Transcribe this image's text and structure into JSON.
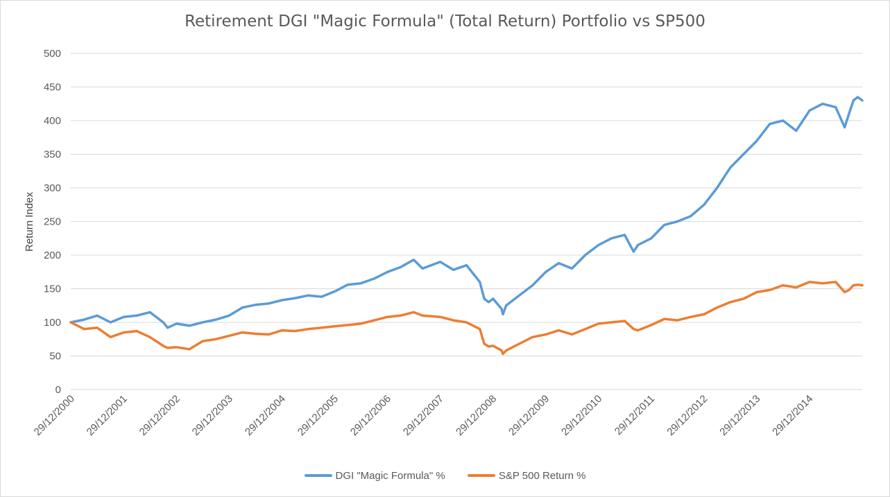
{
  "chart_data": {
    "type": "line",
    "title": "Retirement DGI \"Magic Formula\" (Total Return) Portfolio vs SP500",
    "xlabel": "",
    "ylabel": "Return Index",
    "ylim": [
      0,
      500
    ],
    "yticks": [
      0,
      50,
      100,
      150,
      200,
      250,
      300,
      350,
      400,
      450,
      500
    ],
    "xlim": [
      "29/12/2000",
      "31/12/2015"
    ],
    "xticks": [
      "29/12/2000",
      "29/12/2001",
      "29/12/2002",
      "29/12/2003",
      "29/12/2004",
      "29/12/2005",
      "29/12/2006",
      "29/12/2007",
      "29/12/2008",
      "29/12/2009",
      "29/12/2010",
      "29/12/2011",
      "29/12/2012",
      "29/12/2013",
      "29/12/2014"
    ],
    "grid": "horizontal",
    "legend_position": "bottom",
    "series": [
      {
        "name": "DGI \"Magic Formula\" %",
        "color": "#5b9bd5",
        "x": [
          "29/12/2000",
          "31/03/2001",
          "30/06/2001",
          "30/09/2001",
          "31/12/2001",
          "31/03/2002",
          "30/06/2002",
          "30/09/2002",
          "31/10/2002",
          "31/12/2002",
          "31/03/2003",
          "30/06/2003",
          "30/09/2003",
          "31/12/2003",
          "31/03/2004",
          "30/06/2004",
          "30/09/2004",
          "31/12/2004",
          "31/03/2005",
          "30/06/2005",
          "30/09/2005",
          "31/12/2005",
          "31/03/2006",
          "30/06/2006",
          "30/09/2006",
          "31/12/2006",
          "31/03/2007",
          "30/06/2007",
          "31/08/2007",
          "31/12/2007",
          "31/03/2008",
          "30/06/2008",
          "30/09/2008",
          "31/10/2008",
          "30/11/2008",
          "31/12/2008",
          "28/02/2009",
          "09/03/2009",
          "31/03/2009",
          "30/06/2009",
          "30/09/2009",
          "31/12/2009",
          "31/03/2010",
          "30/06/2010",
          "30/09/2010",
          "31/12/2010",
          "31/03/2011",
          "30/06/2011",
          "31/08/2011",
          "30/09/2011",
          "31/12/2011",
          "31/03/2012",
          "30/06/2012",
          "30/09/2012",
          "31/12/2012",
          "31/03/2013",
          "30/06/2013",
          "30/09/2013",
          "31/12/2013",
          "31/03/2014",
          "30/06/2014",
          "30/09/2014",
          "31/12/2014",
          "31/03/2015",
          "30/06/2015",
          "31/08/2015",
          "30/09/2015",
          "31/10/2015",
          "30/11/2015",
          "31/12/2015"
        ],
        "values": [
          100,
          104,
          110,
          100,
          108,
          110,
          115,
          100,
          92,
          98,
          95,
          100,
          104,
          110,
          122,
          126,
          128,
          133,
          136,
          140,
          138,
          146,
          156,
          158,
          165,
          175,
          182,
          193,
          180,
          190,
          178,
          185,
          160,
          135,
          130,
          135,
          120,
          112,
          125,
          140,
          155,
          175,
          188,
          180,
          200,
          215,
          225,
          230,
          205,
          215,
          225,
          245,
          250,
          258,
          275,
          300,
          330,
          350,
          370,
          395,
          400,
          385,
          415,
          425,
          420,
          390,
          410,
          430,
          435,
          430
        ]
      },
      {
        "name": "S&P 500 Return %",
        "color": "#ed7d31",
        "x": [
          "29/12/2000",
          "31/03/2001",
          "30/06/2001",
          "30/09/2001",
          "31/12/2001",
          "31/03/2002",
          "30/06/2002",
          "30/09/2002",
          "31/10/2002",
          "31/12/2002",
          "31/03/2003",
          "30/06/2003",
          "30/09/2003",
          "31/12/2003",
          "31/03/2004",
          "30/06/2004",
          "30/09/2004",
          "31/12/2004",
          "31/03/2005",
          "30/06/2005",
          "30/09/2005",
          "31/12/2005",
          "31/03/2006",
          "30/06/2006",
          "30/09/2006",
          "31/12/2006",
          "31/03/2007",
          "30/06/2007",
          "31/08/2007",
          "31/12/2007",
          "31/03/2008",
          "30/06/2008",
          "30/09/2008",
          "31/10/2008",
          "30/11/2008",
          "31/12/2008",
          "28/02/2009",
          "09/03/2009",
          "31/03/2009",
          "30/06/2009",
          "30/09/2009",
          "31/12/2009",
          "31/03/2010",
          "30/06/2010",
          "30/09/2010",
          "31/12/2010",
          "31/03/2011",
          "30/06/2011",
          "31/08/2011",
          "30/09/2011",
          "31/12/2011",
          "31/03/2012",
          "30/06/2012",
          "30/09/2012",
          "31/12/2012",
          "31/03/2013",
          "30/06/2013",
          "30/09/2013",
          "31/12/2013",
          "31/03/2014",
          "30/06/2014",
          "30/09/2014",
          "31/12/2014",
          "31/03/2015",
          "30/06/2015",
          "31/08/2015",
          "30/09/2015",
          "31/10/2015",
          "30/11/2015",
          "31/12/2015"
        ],
        "values": [
          100,
          90,
          92,
          78,
          85,
          87,
          78,
          65,
          62,
          63,
          60,
          72,
          75,
          80,
          85,
          83,
          82,
          88,
          87,
          90,
          92,
          94,
          96,
          98,
          103,
          108,
          110,
          115,
          110,
          108,
          103,
          100,
          90,
          68,
          64,
          65,
          58,
          53,
          58,
          68,
          78,
          82,
          88,
          82,
          90,
          98,
          100,
          102,
          90,
          88,
          96,
          105,
          103,
          108,
          112,
          122,
          130,
          135,
          145,
          148,
          155,
          152,
          160,
          158,
          160,
          145,
          148,
          155,
          156,
          155
        ]
      }
    ]
  }
}
